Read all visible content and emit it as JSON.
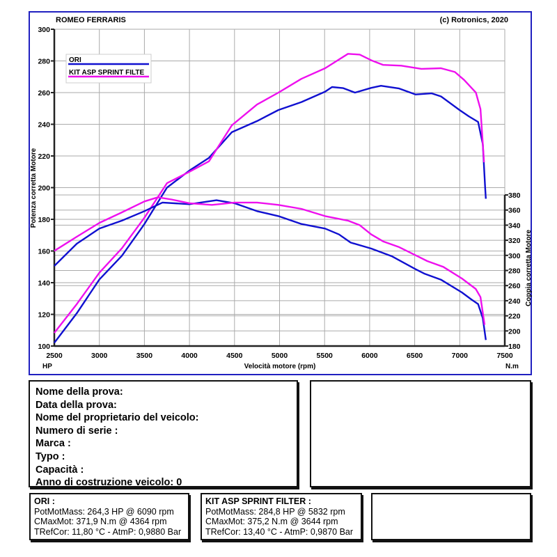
{
  "header": {
    "title": "ROMEO FERRARIS",
    "copyright": "(c) Rotronics, 2020"
  },
  "chart_data": {
    "type": "line",
    "title": "ROMEO FERRARIS",
    "xlabel": "Velocità motore (rpm)",
    "ylabel_left": "Potenza corretta Motore",
    "ylabel_right": "Coppia corretta Motore",
    "xunit": "HP",
    "right_unit": "N.m",
    "xlim": [
      2500,
      7500
    ],
    "ylim_left": [
      100,
      300
    ],
    "ylim_right": [
      180,
      380
    ],
    "xticks": [
      2500,
      3000,
      3500,
      4000,
      4500,
      5000,
      5500,
      6000,
      6500,
      7000,
      7500
    ],
    "yticks_left": [
      100,
      120,
      140,
      160,
      180,
      200,
      220,
      240,
      260,
      280,
      300
    ],
    "yticks_right": [
      180,
      200,
      220,
      240,
      260,
      280,
      300,
      320,
      340,
      360,
      380
    ],
    "grid": true,
    "legend_placement": "top-left",
    "legend": [
      "ORI",
      "KIT ASP SPRINT FILTE"
    ],
    "colors": {
      "ORI": "#1010d0",
      "KIT": "#ee10ee"
    },
    "series": [
      {
        "name": "ORI",
        "axis": "left",
        "quantity": "power",
        "x": [
          2500,
          2750,
          3000,
          3250,
          3500,
          3750,
          4000,
          4216,
          4470,
          4750,
          4988,
          5243,
          5506,
          5583,
          5707,
          5838,
          6018,
          6126,
          6327,
          6511,
          6689,
          6792,
          6998,
          7101,
          7204,
          7256,
          7282,
          7290
        ],
        "values": [
          102,
          120.7,
          142,
          157,
          177,
          200,
          210.8,
          218.8,
          235,
          242,
          249,
          254,
          260.6,
          263.5,
          262.8,
          260,
          263,
          264.3,
          262.6,
          258.8,
          259.5,
          257.6,
          249,
          245,
          241.5,
          227.6,
          200,
          193
        ]
      },
      {
        "name": "KIT ASP SPRINT FILTE",
        "axis": "left",
        "quantity": "power",
        "x": [
          2500,
          2750,
          3000,
          3250,
          3500,
          3750,
          4000,
          4216,
          4470,
          4750,
          4988,
          5243,
          5506,
          5760,
          5890,
          6018,
          6150,
          6350,
          6575,
          6792,
          6946,
          7049,
          7179,
          7230,
          7270
        ],
        "values": [
          108.3,
          126.5,
          146.3,
          161.7,
          181,
          202.8,
          210,
          216.6,
          239.3,
          252.5,
          260,
          268.7,
          275.4,
          284.5,
          284,
          280.4,
          277.5,
          277,
          275,
          275.4,
          273,
          268,
          260,
          249.6,
          216
        ]
      },
      {
        "name": "ORI",
        "axis": "right",
        "quantity": "torque",
        "x": [
          2500,
          2750,
          3000,
          3250,
          3500,
          3700,
          4000,
          4300,
          4500,
          4750,
          4988,
          5243,
          5506,
          5660,
          5789,
          6018,
          6250,
          6511,
          6612,
          6792,
          7024,
          7127,
          7204,
          7256,
          7290
        ],
        "values": [
          286,
          315.5,
          335.5,
          346,
          358.5,
          370,
          367.7,
          373,
          369,
          358.5,
          352,
          341.6,
          335.5,
          327.7,
          317,
          309,
          298.6,
          281.7,
          275.6,
          267.8,
          251,
          241.8,
          235.6,
          217,
          188
        ]
      },
      {
        "name": "KIT ASP SPRINT FILTE",
        "axis": "right",
        "quantity": "torque",
        "x": [
          2500,
          2750,
          3000,
          3250,
          3500,
          3650,
          3800,
          4000,
          4250,
          4500,
          4750,
          4988,
          5243,
          5506,
          5760,
          5890,
          6018,
          6150,
          6327,
          6536,
          6640,
          6818,
          7024,
          7178,
          7230,
          7276
        ],
        "values": [
          306,
          324.7,
          343,
          357,
          371.4,
          377,
          374,
          369,
          366.8,
          370,
          370,
          366.8,
          361.6,
          352,
          346,
          340,
          327.7,
          318.5,
          311,
          298.6,
          292.4,
          284.8,
          269.4,
          255.6,
          244.8,
          208
        ]
      }
    ]
  },
  "info": {
    "lines": [
      "Nome della prova:",
      "Data della prova:",
      "Nome del proprietario del veicolo:",
      "Numero di serie  :",
      "Marca  :",
      "Typo  :",
      "Capacità  :",
      "Anno di costruzione veicolo: 0"
    ]
  },
  "results": [
    {
      "title": "ORI :",
      "lines": [
        "PotMotMass: 264,3 HP @ 6090 rpm",
        "CMaxMot: 371,9 N.m @ 4364 rpm",
        "TRefCor: 11,80 °C - AtmP: 0,9880 Bar"
      ]
    },
    {
      "title": "KIT ASP SPRINT FILTER :",
      "lines": [
        "PotMotMass: 284,8 HP @ 5832 rpm",
        "CMaxMot: 375,2 N.m @ 3644 rpm",
        "TRefCor: 13,40 °C - AtmP: 0,9870 Bar"
      ]
    }
  ]
}
